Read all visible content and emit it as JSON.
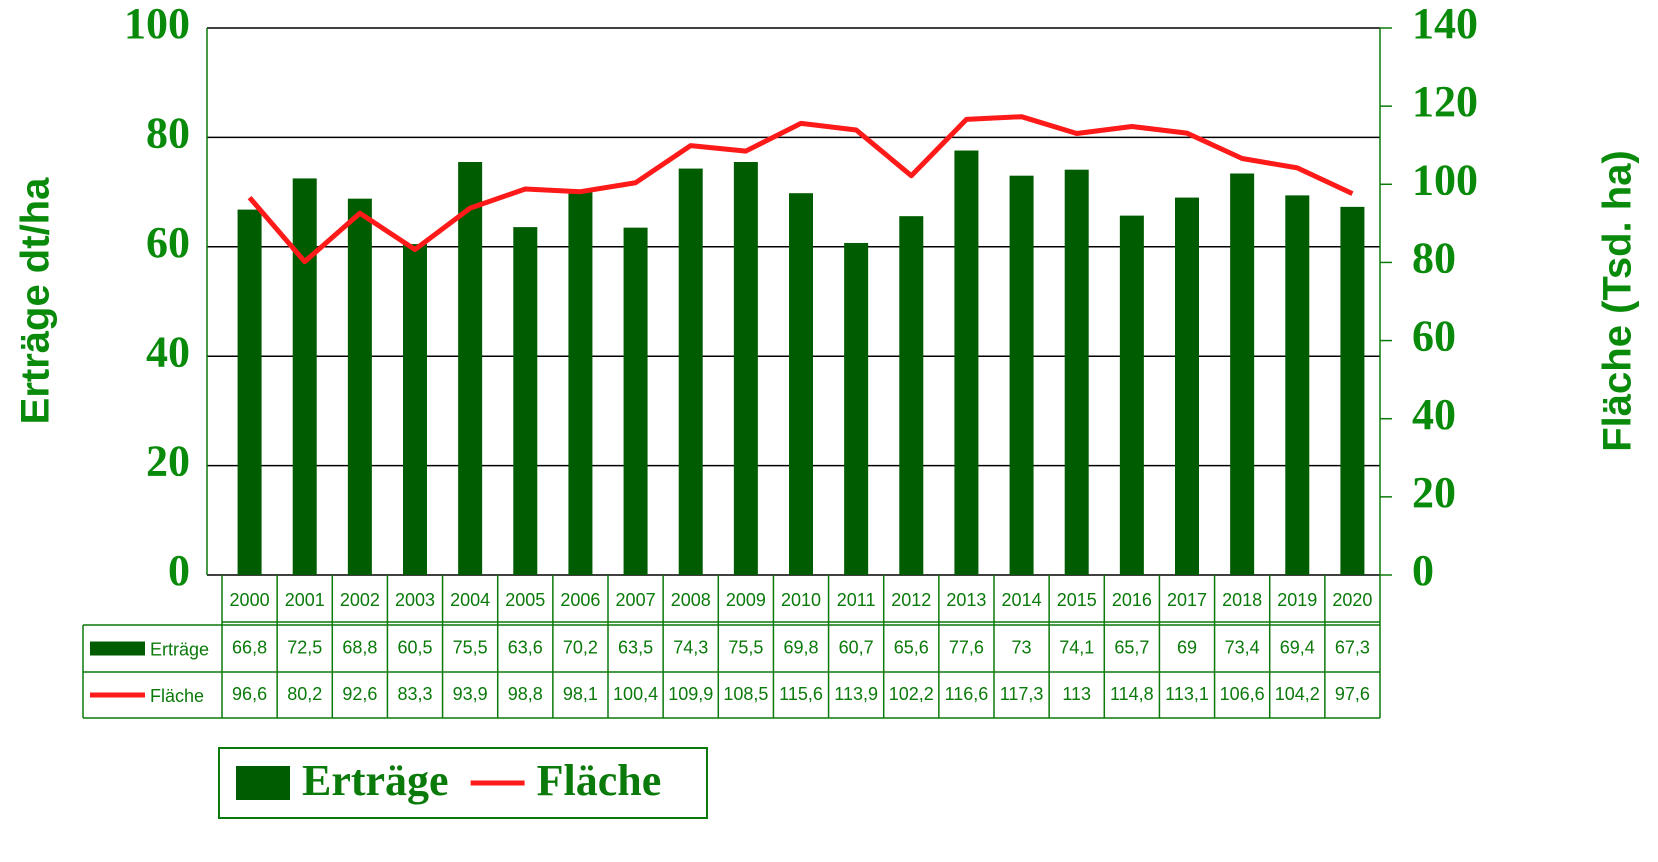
{
  "chart_data": {
    "type": "bar",
    "y_label": "Erträge dt/ha",
    "y2_label": "Fläche (Tsd. ha)",
    "categories": [
      "2000",
      "2001",
      "2002",
      "2003",
      "2004",
      "2005",
      "2006",
      "2007",
      "2008",
      "2009",
      "2010",
      "2011",
      "2012",
      "2013",
      "2014",
      "2015",
      "2016",
      "2017",
      "2018",
      "2019",
      "2020"
    ],
    "series": [
      {
        "name": "Erträge",
        "type": "bar",
        "color": "#005c00",
        "values": [
          66.8,
          72.5,
          68.8,
          60.5,
          75.5,
          63.6,
          70.2,
          63.5,
          74.3,
          75.5,
          69.8,
          60.7,
          65.6,
          77.6,
          73,
          74.1,
          65.7,
          69,
          73.4,
          69.4,
          67.3
        ],
        "value_labels": [
          "66,8",
          "72,5",
          "68,8",
          "60,5",
          "75,5",
          "63,6",
          "70,2",
          "63,5",
          "74,3",
          "75,5",
          "69,8",
          "60,7",
          "65,6",
          "77,6",
          "73",
          "74,1",
          "65,7",
          "69",
          "73,4",
          "69,4",
          "67,3"
        ]
      },
      {
        "name": "Fläche",
        "type": "line",
        "axis": "y2",
        "color": "#ff1a1a",
        "values": [
          96.6,
          80.2,
          92.6,
          83.3,
          93.9,
          98.8,
          98.1,
          100.4,
          109.9,
          108.5,
          115.6,
          113.9,
          102.2,
          116.6,
          117.3,
          113,
          114.8,
          113.1,
          106.6,
          104.2,
          97.6
        ],
        "value_labels": [
          "96,6",
          "80,2",
          "92,6",
          "83,3",
          "93,9",
          "98,8",
          "98,1",
          "100,4",
          "109,9",
          "108,5",
          "115,6",
          "113,9",
          "102,2",
          "116,6",
          "117,3",
          "113",
          "114,8",
          "113,1",
          "106,6",
          "104,2",
          "97,6"
        ]
      }
    ],
    "ylim": [
      0,
      100
    ],
    "yticks": [
      0,
      20,
      40,
      60,
      80,
      100
    ],
    "y2lim": [
      0,
      140
    ],
    "y2ticks": [
      0,
      20,
      40,
      60,
      80,
      100,
      120,
      140
    ],
    "grid": true
  }
}
